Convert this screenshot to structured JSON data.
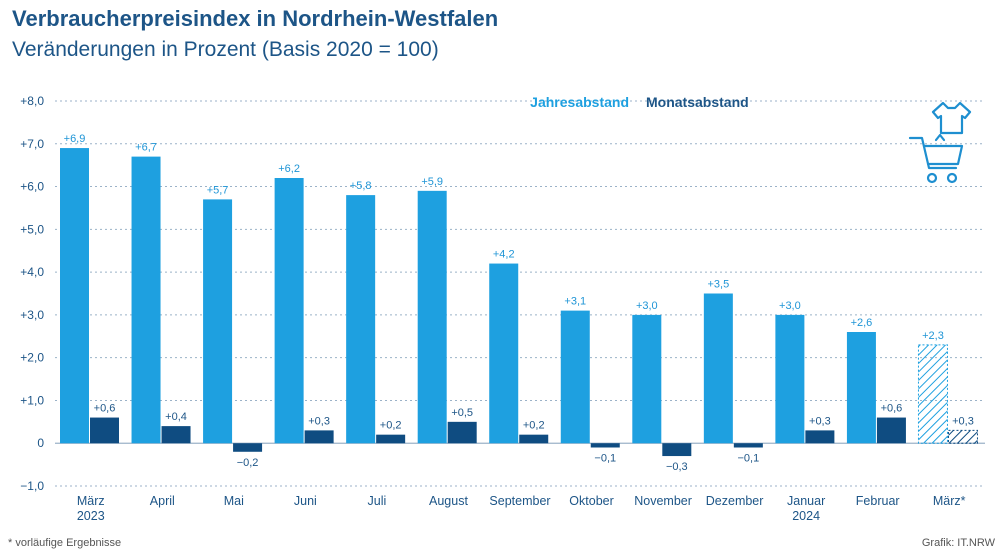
{
  "title": "Verbraucherpreisindex in Nordrhein-Westfalen",
  "subtitle": "Veränderungen in Prozent (Basis 2020 = 100)",
  "footnote": "*  vorläufige Ergebnisse",
  "source": "Grafik: IT.NRW",
  "colors": {
    "jahres": "#1ea0e0",
    "monats": "#0f4c81",
    "text": "#1d5587",
    "grid": "#9bb2c8"
  },
  "icon": "shopping-cart-with-shirt-icon",
  "chart_data": {
    "type": "bar",
    "title": "Verbraucherpreisindex in Nordrhein-Westfalen",
    "subtitle": "Veränderungen in Prozent (Basis 2020 = 100)",
    "categories": [
      "März",
      "April",
      "Mai",
      "Juni",
      "Juli",
      "August",
      "September",
      "Oktober",
      "November",
      "Dezember",
      "Januar",
      "Februar",
      "März*"
    ],
    "category_sublabels": [
      "2023",
      "",
      "",
      "",
      "",
      "",
      "",
      "",
      "",
      "",
      "2024",
      "",
      ""
    ],
    "series": [
      {
        "name": "Jahresabstand",
        "values": [
          6.9,
          6.7,
          5.7,
          6.2,
          5.8,
          5.9,
          4.2,
          3.1,
          3.0,
          3.5,
          3.0,
          2.6,
          2.3
        ],
        "labels": [
          "+6,9",
          "+6,7",
          "+5,7",
          "+6,2",
          "+5,8",
          "+5,9",
          "+4,2",
          "+3,1",
          "+3,0",
          "+3,5",
          "+3,0",
          "+2,6",
          "+2,3"
        ]
      },
      {
        "name": "Monatsabstand",
        "values": [
          0.6,
          0.4,
          -0.2,
          0.3,
          0.2,
          0.5,
          0.2,
          -0.1,
          -0.3,
          -0.1,
          0.3,
          0.6,
          0.3
        ],
        "labels": [
          "+0,6",
          "+0,4",
          "−0,2",
          "+0,3",
          "+0,2",
          "+0,5",
          "+0,2",
          "−0,1",
          "−0,3",
          "−0,1",
          "+0,3",
          "+0,6",
          "+0,3"
        ]
      }
    ],
    "provisional": [
      false,
      false,
      false,
      false,
      false,
      false,
      false,
      false,
      false,
      false,
      false,
      false,
      true
    ],
    "ylim": [
      -1.0,
      8.0
    ],
    "yticks": [
      -1.0,
      0,
      1.0,
      2.0,
      3.0,
      4.0,
      5.0,
      6.0,
      7.0,
      8.0
    ],
    "ytick_labels": [
      "−1,0",
      "0",
      "+1,0",
      "+2,0",
      "+3,0",
      "+4,0",
      "+5,0",
      "+6,0",
      "+7,0",
      "+8,0"
    ],
    "grid": true,
    "legend": "top-center"
  }
}
